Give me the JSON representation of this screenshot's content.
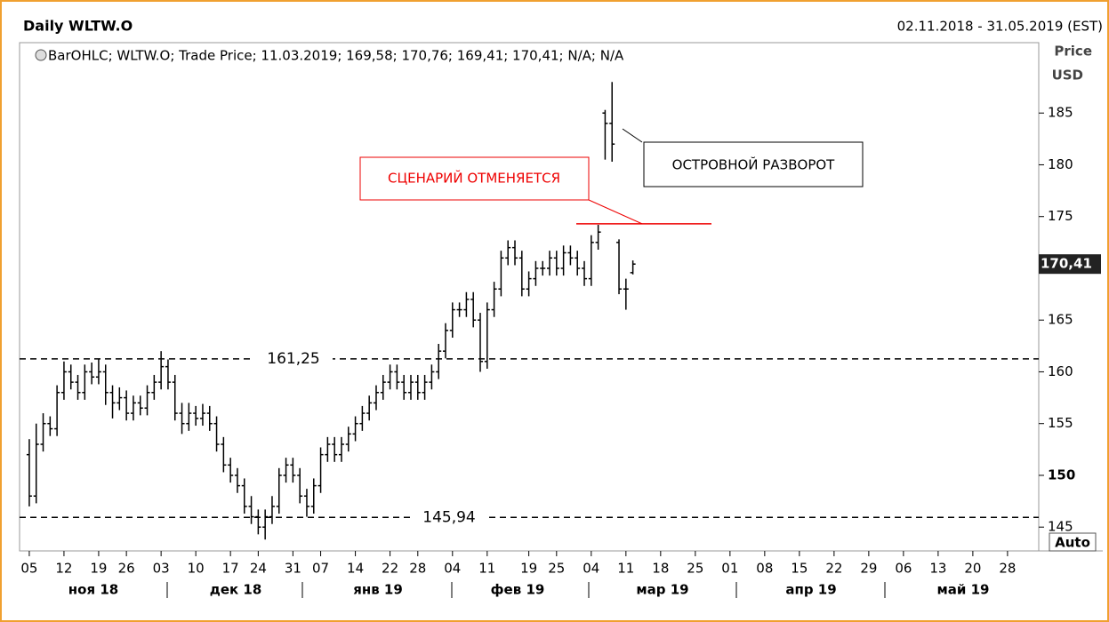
{
  "chart_data": {
    "type": "ohlc",
    "title": "Daily WLTW.O",
    "date_range": "02.11.2018 - 31.05.2019 (EST)",
    "legend_text": "BarOHLC; WLTW.O; Trade Price; 11.03.2019; 169,58; 170,76; 169,41; 170,41; N/A; N/A",
    "y_axis_label": "Price",
    "y_axis_unit": "USD",
    "auto_label": "Auto",
    "color": "#000000",
    "ylim": [
      142.7,
      191.8
    ],
    "yticks": [
      145,
      150,
      155,
      160,
      165,
      175,
      180,
      185
    ],
    "xlim": [
      -1.4,
      145.5
    ],
    "xticks": [
      {
        "value": 0,
        "label": "05"
      },
      {
        "value": 5,
        "label": "12"
      },
      {
        "value": 10,
        "label": "19"
      },
      {
        "value": 14,
        "label": "26"
      },
      {
        "value": 19,
        "label": "03"
      },
      {
        "value": 24,
        "label": "10"
      },
      {
        "value": 29,
        "label": "17"
      },
      {
        "value": 33,
        "label": "24"
      },
      {
        "value": 38,
        "label": "31"
      },
      {
        "value": 42,
        "label": "07"
      },
      {
        "value": 47,
        "label": "14"
      },
      {
        "value": 52,
        "label": "22"
      },
      {
        "value": 56,
        "label": "28"
      },
      {
        "value": 61,
        "label": "04"
      },
      {
        "value": 66,
        "label": "11"
      },
      {
        "value": 72,
        "label": "19"
      },
      {
        "value": 76,
        "label": "25"
      },
      {
        "value": 81,
        "label": "04"
      },
      {
        "value": 86,
        "label": "11"
      },
      {
        "value": 91,
        "label": "18"
      },
      {
        "value": 96,
        "label": "25"
      },
      {
        "value": 101,
        "label": "01"
      },
      {
        "value": 106,
        "label": "08"
      },
      {
        "value": 111,
        "label": "15"
      },
      {
        "value": 116,
        "label": "22"
      },
      {
        "value": 121,
        "label": "29"
      },
      {
        "value": 126,
        "label": "06"
      },
      {
        "value": 131,
        "label": "13"
      },
      {
        "value": 136,
        "label": "20"
      },
      {
        "value": 141,
        "label": "28"
      }
    ],
    "months": [
      "ноя 18",
      "дек 18",
      "янв 19",
      "фев 19",
      "мар 19",
      "апр 19",
      "май 19"
    ],
    "open": [
      152,
      148,
      153,
      155,
      154.5,
      158,
      160,
      159,
      158,
      160,
      159.5,
      160,
      158,
      157,
      157.5,
      156,
      157,
      156.5,
      158,
      159,
      160.5,
      159,
      156,
      155,
      156,
      155.5,
      156,
      155,
      153,
      151,
      150,
      149,
      147,
      146,
      145,
      146,
      147,
      150,
      151,
      150,
      148,
      147,
      149,
      152,
      153,
      152,
      153,
      154,
      155,
      156,
      157,
      158,
      159,
      160,
      159,
      158,
      159,
      158,
      159,
      160,
      162,
      164,
      166,
      166,
      167,
      165,
      161,
      166,
      168,
      171,
      172,
      171,
      168,
      169,
      170,
      170,
      171,
      170,
      171.5,
      171,
      170,
      169,
      172.5,
      185,
      184,
      172.5,
      168,
      169.58
    ],
    "high": [
      153.5,
      155,
      156,
      155.7,
      158.7,
      161,
      160.7,
      159.7,
      160.7,
      160.9,
      161.2,
      160.7,
      158.7,
      158.5,
      158.2,
      157.7,
      157.7,
      158.7,
      159.7,
      162,
      161.2,
      159.7,
      157,
      157,
      156.7,
      156.9,
      156.7,
      155.7,
      153.7,
      151.7,
      150.7,
      149.7,
      148,
      146.7,
      146.7,
      148,
      150.7,
      151.7,
      151.7,
      150.7,
      148.7,
      149.7,
      152.7,
      153.7,
      153.7,
      153.7,
      154.7,
      155.7,
      156.7,
      157.7,
      158.7,
      159.7,
      160.7,
      160.7,
      159.7,
      159.7,
      159.7,
      159.7,
      160.7,
      162.7,
      164.7,
      166.7,
      166.7,
      167.7,
      167.7,
      165.7,
      166.7,
      168.7,
      171.7,
      172.7,
      172.7,
      171.7,
      169.7,
      170.7,
      170.7,
      171.7,
      171.7,
      172.2,
      172.2,
      171.7,
      170.7,
      173.2,
      174.2,
      185.3,
      188,
      172.8,
      169,
      170.76
    ],
    "low": [
      147,
      147.3,
      152.3,
      153.8,
      153.8,
      157.3,
      158.3,
      157.3,
      157.3,
      158.8,
      158.8,
      156.8,
      155.5,
      156.3,
      155.3,
      155.3,
      155.8,
      155.8,
      157.3,
      158.3,
      158.3,
      155.3,
      154,
      154.3,
      154.8,
      154.8,
      154.3,
      152.3,
      150.3,
      149.3,
      148.3,
      146.3,
      145.3,
      144.3,
      143.8,
      145.3,
      146.3,
      149.3,
      149.3,
      147.3,
      146,
      146.3,
      148.3,
      151.3,
      151.3,
      151.3,
      152.3,
      153.3,
      154.3,
      155.3,
      156.3,
      157.3,
      158.3,
      158.3,
      157.3,
      157.3,
      157.3,
      157.3,
      158.3,
      159.3,
      161.3,
      163.3,
      165.3,
      165.3,
      164.3,
      160,
      160.3,
      165.3,
      167.3,
      170.3,
      170.3,
      167.3,
      167.3,
      168.3,
      169.3,
      169.3,
      169.3,
      169.3,
      170.3,
      169.3,
      168.3,
      168.3,
      171.8,
      180.5,
      180.3,
      167.5,
      166,
      169.41
    ],
    "close": [
      148,
      153,
      155,
      154.5,
      158,
      160,
      159,
      158,
      160,
      159.5,
      160,
      158,
      157,
      157.5,
      156,
      157,
      156.5,
      158,
      159,
      160.5,
      159,
      156,
      155,
      156,
      155.5,
      156,
      155,
      153,
      151,
      150,
      149,
      147,
      146,
      145,
      146,
      147,
      150,
      151,
      150,
      148,
      147,
      149,
      152,
      153,
      152,
      153,
      154,
      155,
      156,
      157,
      158,
      159,
      160,
      159,
      158,
      159,
      158,
      159,
      160,
      162,
      164,
      166,
      166,
      167,
      165,
      161,
      166,
      168,
      171,
      172,
      171,
      168,
      169,
      170,
      170,
      171,
      170,
      171.5,
      171,
      170,
      169,
      172.5,
      173.5,
      184,
      182,
      168,
      168,
      170.41
    ],
    "last_price_label": "170,41",
    "levels": [
      {
        "value": 161.25,
        "label": "161,25"
      },
      {
        "value": 145.94,
        "label": "145,94"
      }
    ],
    "scenario_level": 174.3,
    "scenario_text": "СЦЕНАРИЙ ОТМЕНЯЕТСЯ",
    "island_text": "ОСТРОВНОЙ РАЗВОРОТ"
  }
}
